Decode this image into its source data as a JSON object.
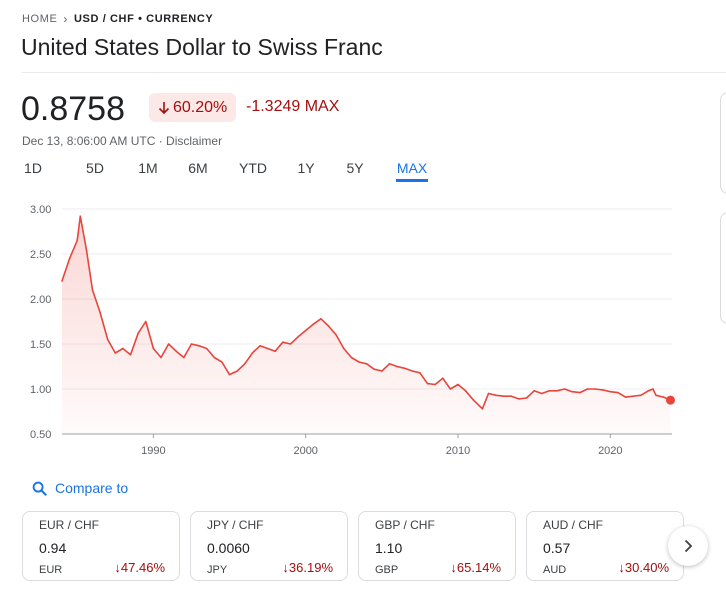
{
  "breadcrumb": {
    "home": "HOME",
    "current": "USD / CHF • CURRENCY"
  },
  "title": "United States Dollar to Swiss Franc",
  "quote": {
    "price": "0.8758",
    "change_pct": "60.20%",
    "change_abs": "-1.3249 MAX",
    "timestamp": "Dec 13, 8:06:00 AM UTC · Disclaimer"
  },
  "ranges": [
    "1D",
    "5D",
    "1M",
    "6M",
    "YTD",
    "1Y",
    "5Y",
    "MAX"
  ],
  "active_range": "MAX",
  "colors": {
    "negative": "#a50e0e",
    "negative_bg": "#fce8e6",
    "line": "#e8453c",
    "accent": "#1a73e8"
  },
  "chart_data": {
    "type": "area",
    "x": [
      1984.0,
      1984.5,
      1985.0,
      1985.2,
      1985.6,
      1986.0,
      1986.5,
      1987.0,
      1987.5,
      1988.0,
      1988.5,
      1989.0,
      1989.5,
      1990.0,
      1990.5,
      1991.0,
      1991.5,
      1992.0,
      1992.5,
      1993.0,
      1993.5,
      1994.0,
      1994.5,
      1995.0,
      1995.5,
      1996.0,
      1996.5,
      1997.0,
      1997.5,
      1998.0,
      1998.5,
      1999.0,
      1999.5,
      2000.0,
      2000.5,
      2001.0,
      2001.5,
      2002.0,
      2002.5,
      2003.0,
      2003.5,
      2004.0,
      2004.5,
      2005.0,
      2005.5,
      2006.0,
      2006.5,
      2007.0,
      2007.5,
      2008.0,
      2008.5,
      2009.0,
      2009.5,
      2010.0,
      2010.5,
      2011.0,
      2011.6,
      2012.0,
      2012.5,
      2013.0,
      2013.5,
      2014.0,
      2014.5,
      2015.0,
      2015.5,
      2016.0,
      2016.5,
      2017.0,
      2017.5,
      2018.0,
      2018.5,
      2019.0,
      2019.5,
      2020.0,
      2020.5,
      2021.0,
      2021.5,
      2022.0,
      2022.5,
      2022.8,
      2023.0,
      2023.5,
      2023.95
    ],
    "values": [
      2.2,
      2.45,
      2.65,
      2.92,
      2.55,
      2.1,
      1.85,
      1.55,
      1.4,
      1.45,
      1.38,
      1.62,
      1.75,
      1.45,
      1.35,
      1.5,
      1.42,
      1.35,
      1.5,
      1.48,
      1.45,
      1.35,
      1.3,
      1.16,
      1.2,
      1.28,
      1.4,
      1.48,
      1.45,
      1.42,
      1.52,
      1.5,
      1.58,
      1.65,
      1.72,
      1.78,
      1.7,
      1.6,
      1.45,
      1.35,
      1.3,
      1.28,
      1.22,
      1.2,
      1.28,
      1.25,
      1.23,
      1.2,
      1.18,
      1.06,
      1.05,
      1.12,
      1.0,
      1.05,
      0.98,
      0.88,
      0.78,
      0.95,
      0.93,
      0.92,
      0.92,
      0.89,
      0.9,
      0.98,
      0.95,
      0.98,
      0.98,
      1.0,
      0.97,
      0.96,
      1.0,
      1.0,
      0.99,
      0.97,
      0.96,
      0.91,
      0.92,
      0.93,
      0.98,
      1.0,
      0.93,
      0.91,
      0.8758
    ],
    "xticks": [
      "1990",
      "2000",
      "2010",
      "2020"
    ],
    "yticks": [
      "3.00",
      "2.50",
      "2.00",
      "1.50",
      "1.00",
      "0.50"
    ],
    "xlim": [
      1984,
      2024.05
    ],
    "ylim": [
      0.5,
      3.0
    ],
    "grid": true,
    "legend": "none"
  },
  "compare": {
    "label": "Compare to",
    "icon": "search-icon"
  },
  "related": [
    {
      "pair": "EUR / CHF",
      "value": "0.94",
      "symbol": "EUR",
      "change": "47.46%"
    },
    {
      "pair": "JPY / CHF",
      "value": "0.0060",
      "symbol": "JPY",
      "change": "36.19%"
    },
    {
      "pair": "GBP / CHF",
      "value": "1.10",
      "symbol": "GBP",
      "change": "65.14%"
    },
    {
      "pair": "AUD / CHF",
      "value": "0.57",
      "symbol": "AUD",
      "change": "30.40%"
    }
  ],
  "next_icon": "chevron-right-icon"
}
